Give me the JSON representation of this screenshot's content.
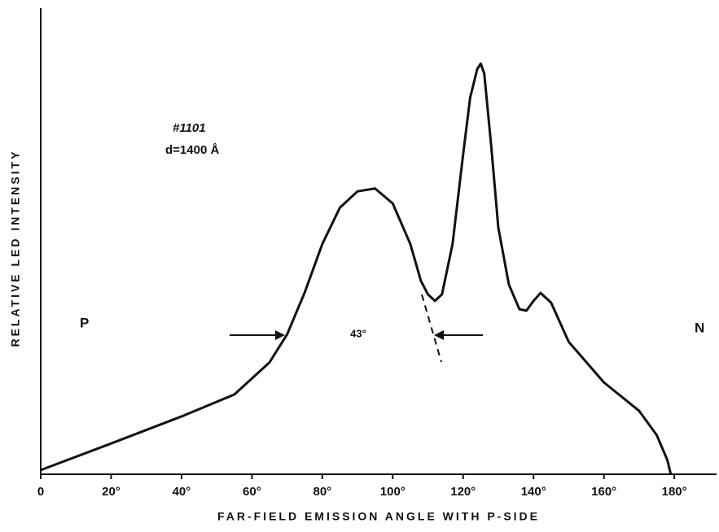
{
  "chart_data": {
    "type": "line",
    "x_label": "FAR-FIELD EMISSION ANGLE WITH P-SIDE",
    "y_label": "RELATIVE LED INTENSITY",
    "x": [
      0,
      20,
      40,
      55,
      65,
      70,
      75,
      80,
      85,
      90,
      95,
      100,
      105,
      108,
      110,
      112,
      114,
      117,
      120,
      122,
      124,
      125,
      126,
      128,
      130,
      133,
      136,
      138,
      140,
      142,
      145,
      150,
      160,
      170,
      175,
      178,
      179
    ],
    "series": [
      {
        "color": "#111111",
        "values": [
          0.9,
          6.6,
          12.4,
          17.1,
          24,
          30,
          39,
          49.4,
          57.2,
          60.7,
          61.3,
          58.1,
          49.4,
          41.5,
          38.6,
          37.2,
          38.6,
          49.4,
          68.6,
          80.8,
          86.9,
          88.1,
          86,
          70.3,
          52.9,
          40.7,
          35.4,
          35.1,
          37.2,
          38.9,
          36.8,
          28.4,
          19.7,
          13.6,
          8.4,
          3.1,
          0
        ]
      }
    ],
    "xlim": [
      0,
      192
    ],
    "ylim": [
      0,
      100
    ],
    "xticks": [
      0,
      {
        "value": 20,
        "label": "20°"
      },
      {
        "value": 40,
        "label": "40°"
      },
      {
        "value": 60,
        "label": "60°"
      },
      {
        "value": 80,
        "label": "80°"
      },
      {
        "value": 100,
        "label": "100°"
      },
      {
        "value": 120,
        "label": "120°"
      },
      {
        "value": 140,
        "label": "140°"
      },
      {
        "value": 160,
        "label": "160°"
      },
      {
        "value": 180,
        "label": "180°"
      }
    ],
    "annotations": {
      "sample": "#1101",
      "thickness": "d=1400 Å",
      "p_side": "P",
      "n_side": "N",
      "width": "43°"
    }
  }
}
